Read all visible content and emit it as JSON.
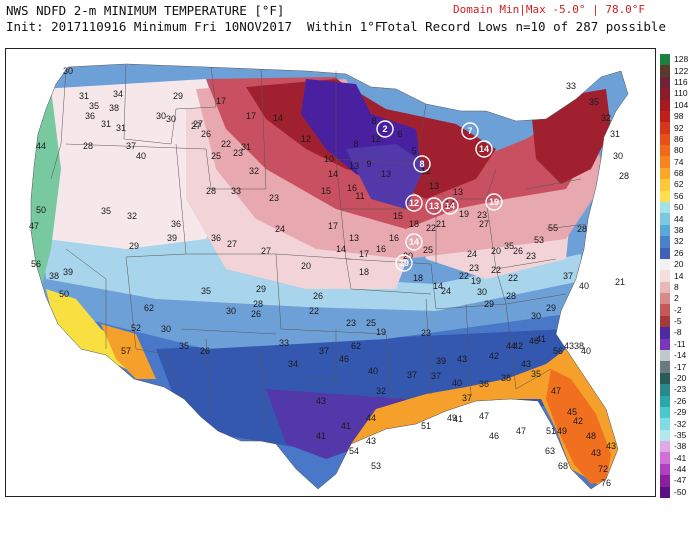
{
  "header": {
    "line1": "NWS NDFD 2-m MINIMUM TEMPERATURE [°F]",
    "line2": "Init: 2017110916 Minimum Fri 10NOV2017  Within 1°F",
    "domain_minmax": "Domain Min|Max -5.0° | 78.0°F",
    "record_lows": "Total Record Lows n=10 of 287 possible"
  },
  "colorbar": {
    "labels": [
      "128",
      "122",
      "116",
      "110",
      "104",
      "98",
      "92",
      "86",
      "80",
      "74",
      "68",
      "62",
      "56",
      "50",
      "44",
      "38",
      "32",
      "26",
      "20",
      "14",
      "8",
      "2",
      "-2",
      "-5",
      "-8",
      "-11",
      "-14",
      "-17",
      "-20",
      "-23",
      "-26",
      "-29",
      "-32",
      "-35",
      "-38",
      "-41",
      "-44",
      "-47",
      "-50"
    ],
    "colors": [
      "#1e8040",
      "#5a3a2a",
      "#6e2438",
      "#8a1c2c",
      "#a81a1e",
      "#c0201a",
      "#d8361a",
      "#e8521a",
      "#f06a1c",
      "#f8861e",
      "#fba82a",
      "#fdc83a",
      "#fde050",
      "#a6e0e8",
      "#7cc8e0",
      "#5aa8d8",
      "#4a82c8",
      "#4260b8",
      "#f2f2f2",
      "#f4dede",
      "#e8b8b8",
      "#d88a8a",
      "#c25a5a",
      "#a63a3a",
      "#4d2aa2",
      "#7a38b8",
      "#c0c8cc",
      "#6a7a80",
      "#2a5a5a",
      "#2a8a8a",
      "#28a8a8",
      "#4ac8d0",
      "#80dce4",
      "#b0e8ee",
      "#e0a8e8",
      "#d070d8",
      "#b040c0",
      "#8a20a0",
      "#5a1080"
    ]
  },
  "map": {
    "colors": {
      "warm_far_north": "#8a1c2c",
      "deep_red": "#a02030",
      "red": "#c85060",
      "pink": "#e8a8b0",
      "light_pink": "#f2d4d8",
      "pale": "#f6e8ea",
      "lightblue": "#a8d4ec",
      "midblue": "#6ea0d8",
      "blue": "#4a78c8",
      "darkblue": "#3458b0",
      "purple": "#5238a8",
      "deep_purple": "#4820a0",
      "yellow": "#f8e040",
      "orange": "#f5a02a",
      "deep_orange": "#f07020",
      "coast_green": "#78c8a0"
    },
    "labels": [
      {
        "t": "30"
      },
      {
        "t": "31"
      },
      {
        "t": "34"
      },
      {
        "t": "35"
      },
      {
        "t": "36"
      },
      {
        "t": "38"
      },
      {
        "t": "29"
      },
      {
        "t": "17"
      },
      {
        "t": "17"
      },
      {
        "t": "31"
      },
      {
        "t": "30"
      },
      {
        "t": "27"
      },
      {
        "t": "26"
      },
      {
        "t": "14"
      },
      {
        "t": "12"
      },
      {
        "t": "8"
      },
      {
        "t": "12"
      },
      {
        "t": "10"
      },
      {
        "t": "13"
      },
      {
        "t": "8"
      },
      {
        "t": "9"
      },
      {
        "t": "6"
      },
      {
        "t": "5"
      },
      {
        "t": "13"
      },
      {
        "t": "12"
      },
      {
        "t": "13"
      },
      {
        "t": "14"
      },
      {
        "t": "13"
      },
      {
        "t": "19"
      },
      {
        "t": "44"
      },
      {
        "t": "28"
      },
      {
        "t": "37"
      },
      {
        "t": "31"
      },
      {
        "t": "40"
      },
      {
        "t": "22"
      },
      {
        "t": "28"
      },
      {
        "t": "33"
      },
      {
        "t": "23"
      },
      {
        "t": "14"
      },
      {
        "t": "16"
      },
      {
        "t": "11"
      },
      {
        "t": "15"
      },
      {
        "t": "50"
      },
      {
        "t": "47"
      },
      {
        "t": "35"
      },
      {
        "t": "32"
      },
      {
        "t": "36"
      },
      {
        "t": "39"
      },
      {
        "t": "29"
      },
      {
        "t": "27"
      },
      {
        "t": "24"
      },
      {
        "t": "27"
      },
      {
        "t": "17"
      },
      {
        "t": "14"
      },
      {
        "t": "13"
      },
      {
        "t": "17"
      },
      {
        "t": "18"
      },
      {
        "t": "16"
      },
      {
        "t": "16"
      },
      {
        "t": "15"
      },
      {
        "t": "18"
      },
      {
        "t": "25"
      },
      {
        "t": "22"
      },
      {
        "t": "21"
      },
      {
        "t": "23"
      },
      {
        "t": "27"
      },
      {
        "t": "20"
      },
      {
        "t": "24"
      },
      {
        "t": "20"
      },
      {
        "t": "22"
      },
      {
        "t": "26"
      },
      {
        "t": "23"
      },
      {
        "t": "22"
      },
      {
        "t": "19"
      },
      {
        "t": "56"
      },
      {
        "t": "38"
      },
      {
        "t": "39"
      },
      {
        "t": "50"
      },
      {
        "t": "35"
      },
      {
        "t": "29"
      },
      {
        "t": "28"
      },
      {
        "t": "26"
      },
      {
        "t": "20"
      },
      {
        "t": "26"
      },
      {
        "t": "14"
      },
      {
        "t": "18"
      },
      {
        "t": "24"
      },
      {
        "t": "22"
      },
      {
        "t": "23"
      },
      {
        "t": "30"
      },
      {
        "t": "35"
      },
      {
        "t": "53"
      },
      {
        "t": "55"
      },
      {
        "t": "28"
      },
      {
        "t": "21"
      },
      {
        "t": "30"
      },
      {
        "t": "22"
      },
      {
        "t": "23"
      },
      {
        "t": "25"
      },
      {
        "t": "19"
      },
      {
        "t": "23"
      },
      {
        "t": "29"
      },
      {
        "t": "28"
      },
      {
        "t": "30"
      },
      {
        "t": "29"
      },
      {
        "t": "37"
      },
      {
        "t": "40"
      },
      {
        "t": "62"
      },
      {
        "t": "57"
      },
      {
        "t": "52"
      },
      {
        "t": "30"
      },
      {
        "t": "35"
      },
      {
        "t": "26"
      },
      {
        "t": "33"
      },
      {
        "t": "34"
      },
      {
        "t": "37"
      },
      {
        "t": "43"
      },
      {
        "t": "46"
      },
      {
        "t": "62"
      },
      {
        "t": "40"
      },
      {
        "t": "32"
      },
      {
        "t": "37"
      },
      {
        "t": "37"
      },
      {
        "t": "39"
      },
      {
        "t": "40"
      },
      {
        "t": "36"
      },
      {
        "t": "44"
      },
      {
        "t": "43"
      },
      {
        "t": "41"
      },
      {
        "t": "56"
      },
      {
        "t": "38"
      },
      {
        "t": "35"
      },
      {
        "t": "38"
      },
      {
        "t": "37"
      },
      {
        "t": "43"
      },
      {
        "t": "42"
      },
      {
        "t": "42"
      },
      {
        "t": "46"
      },
      {
        "t": "43"
      },
      {
        "t": "40"
      },
      {
        "t": "47"
      },
      {
        "t": "45"
      },
      {
        "t": "42"
      },
      {
        "t": "48"
      },
      {
        "t": "43"
      },
      {
        "t": "43"
      },
      {
        "t": "41"
      },
      {
        "t": "41"
      },
      {
        "t": "44"
      },
      {
        "t": "43"
      },
      {
        "t": "53"
      },
      {
        "t": "54"
      },
      {
        "t": "51"
      },
      {
        "t": "49"
      },
      {
        "t": "41"
      },
      {
        "t": "47"
      },
      {
        "t": "46"
      },
      {
        "t": "47"
      },
      {
        "t": "51"
      },
      {
        "t": "49"
      },
      {
        "t": "63"
      },
      {
        "t": "68"
      },
      {
        "t": "72"
      },
      {
        "t": "76"
      },
      {
        "t": "36"
      },
      {
        "t": "30"
      },
      {
        "t": "27"
      },
      {
        "t": "23"
      },
      {
        "t": "25"
      },
      {
        "t": "31"
      },
      {
        "t": "32"
      },
      {
        "t": "33"
      },
      {
        "t": "35"
      },
      {
        "t": "32"
      },
      {
        "t": "31"
      },
      {
        "t": "30"
      },
      {
        "t": "28"
      }
    ],
    "record_circles": [
      "2",
      "7",
      "14",
      "8",
      "12",
      "13",
      "14",
      "19",
      "14",
      "19"
    ]
  }
}
